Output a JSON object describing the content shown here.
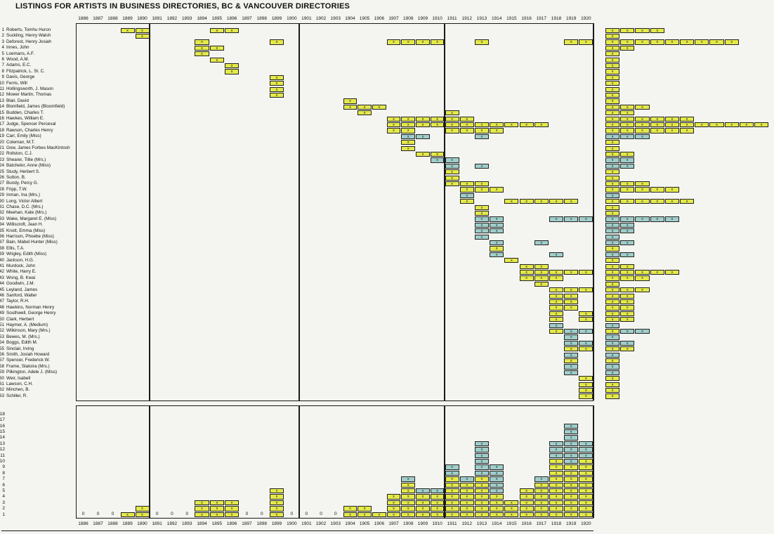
{
  "title": "LISTINGS FOR ARTISTS IN BUSINESS DIRECTORIES, BC & VANCOUVER DIRECTORIES",
  "colors": {
    "mark_yellow": "#e4e94a",
    "mark_cyan": "#9fceca",
    "line": "#1a1a1a",
    "background": "#f4f4f0"
  },
  "chart_data": {
    "type": "heatmap",
    "mark_symbol": "x",
    "years": {
      "start": 1886,
      "end": 1920
    },
    "ylabel_bottom_axis_max": 18,
    "zero_years": [
      1886,
      1887,
      1888,
      1891,
      1892,
      1893,
      1897,
      1898,
      1900,
      1901,
      1902,
      1903
    ],
    "artists": [
      {
        "n": 1,
        "name": "Roberts, Tomhu Huron",
        "marks": [
          [
            1889,
            "y"
          ],
          [
            1890,
            "y"
          ],
          [
            1895,
            "y"
          ],
          [
            1896,
            "y"
          ]
        ]
      },
      {
        "n": 2,
        "name": "Suckling, Henry Walsh",
        "marks": [
          [
            1890,
            "y"
          ]
        ]
      },
      {
        "n": 3,
        "name": "Deforest, Henry Josiah",
        "marks": [
          [
            1894,
            "y"
          ],
          [
            1899,
            "y"
          ],
          [
            1907,
            "y"
          ],
          [
            1908,
            "y"
          ],
          [
            1909,
            "y"
          ],
          [
            1910,
            "y"
          ],
          [
            1913,
            "y"
          ],
          [
            1919,
            "y"
          ],
          [
            1920,
            "y"
          ]
        ]
      },
      {
        "n": 4,
        "name": "Innes, John",
        "marks": [
          [
            1894,
            "y"
          ],
          [
            1895,
            "y"
          ]
        ]
      },
      {
        "n": 5,
        "name": "Loemans, A.F.",
        "marks": [
          [
            1894,
            "y"
          ]
        ]
      },
      {
        "n": 6,
        "name": "Wood, A.M.",
        "marks": [
          [
            1895,
            "y"
          ]
        ]
      },
      {
        "n": 7,
        "name": "Adams, E.C.",
        "marks": [
          [
            1896,
            "y"
          ]
        ]
      },
      {
        "n": 8,
        "name": "Fitzpatrick, L. St. C.",
        "marks": [
          [
            1896,
            "y"
          ]
        ]
      },
      {
        "n": 9,
        "name": "Davis, George",
        "marks": [
          [
            1899,
            "y"
          ]
        ]
      },
      {
        "n": 10,
        "name": "Ferris, Will",
        "marks": [
          [
            1899,
            "y"
          ]
        ]
      },
      {
        "n": 11,
        "name": "Hollingsworth, J. Mason",
        "marks": [
          [
            1899,
            "y"
          ]
        ]
      },
      {
        "n": 12,
        "name": "Mower Martin, Thomas",
        "marks": [
          [
            1899,
            "y"
          ]
        ]
      },
      {
        "n": 13,
        "name": "Blair, David",
        "marks": [
          [
            1904,
            "y"
          ]
        ]
      },
      {
        "n": 14,
        "name": "Blomfield, James (Bloomfield)",
        "marks": [
          [
            1904,
            "y"
          ],
          [
            1905,
            "y"
          ],
          [
            1906,
            "y"
          ]
        ]
      },
      {
        "n": 15,
        "name": "Budden, Charles T.",
        "marks": [
          [
            1905,
            "y"
          ],
          [
            1911,
            "y"
          ]
        ]
      },
      {
        "n": 16,
        "name": "Hawkes, William E.",
        "marks": [
          [
            1907,
            "y"
          ],
          [
            1908,
            "y"
          ],
          [
            1909,
            "y"
          ],
          [
            1910,
            "y"
          ],
          [
            1911,
            "y"
          ],
          [
            1912,
            "y"
          ]
        ]
      },
      {
        "n": 17,
        "name": "Judge, Spencer Perceval",
        "marks": [
          [
            1907,
            "y"
          ],
          [
            1908,
            "y"
          ],
          [
            1909,
            "y"
          ],
          [
            1910,
            "y"
          ],
          [
            1911,
            "y"
          ],
          [
            1912,
            "y"
          ],
          [
            1913,
            "y"
          ],
          [
            1914,
            "y"
          ],
          [
            1915,
            "y"
          ],
          [
            1916,
            "y"
          ],
          [
            1917,
            "y"
          ]
        ]
      },
      {
        "n": 18,
        "name": "Rawson, Charles Henry",
        "marks": [
          [
            1907,
            "y"
          ],
          [
            1908,
            "y"
          ],
          [
            1911,
            "y"
          ],
          [
            1912,
            "y"
          ],
          [
            1913,
            "y"
          ],
          [
            1914,
            "y"
          ]
        ]
      },
      {
        "n": 19,
        "name": "Carr, Emily (Miss)",
        "marks": [
          [
            1908,
            "c"
          ],
          [
            1909,
            "c"
          ],
          [
            1913,
            "c"
          ]
        ]
      },
      {
        "n": 20,
        "name": "Coleman, M.T.",
        "marks": [
          [
            1908,
            "y"
          ]
        ]
      },
      {
        "n": 21,
        "name": "Gow, James Forbes MacKintosh",
        "marks": [
          [
            1908,
            "y"
          ]
        ]
      },
      {
        "n": 22,
        "name": "Rollston, C.J.",
        "marks": [
          [
            1909,
            "y"
          ],
          [
            1910,
            "y"
          ]
        ]
      },
      {
        "n": 23,
        "name": "Shearer, Tillie (Mrs.)",
        "marks": [
          [
            1910,
            "c"
          ],
          [
            1911,
            "c"
          ]
        ]
      },
      {
        "n": 24,
        "name": "Batchelor, Anne (Miss)",
        "marks": [
          [
            1911,
            "c"
          ],
          [
            1913,
            "c"
          ]
        ]
      },
      {
        "n": 25,
        "name": "Study, Herbert S.",
        "marks": [
          [
            1911,
            "y"
          ]
        ]
      },
      {
        "n": 26,
        "name": "Sutton, B.",
        "marks": [
          [
            1911,
            "y"
          ]
        ]
      },
      {
        "n": 27,
        "name": "Bundy, Percy G.",
        "marks": [
          [
            1911,
            "y"
          ],
          [
            1912,
            "y"
          ],
          [
            1913,
            "y"
          ]
        ]
      },
      {
        "n": 28,
        "name": "Fripp, T.W.",
        "marks": [
          [
            1912,
            "y"
          ],
          [
            1913,
            "y"
          ],
          [
            1914,
            "y"
          ]
        ],
        "tally_override": [
          "y",
          "y",
          "y",
          "y",
          "y"
        ]
      },
      {
        "n": 29,
        "name": "Inman, Ina (Mrs.)",
        "marks": [
          [
            1912,
            "c"
          ]
        ]
      },
      {
        "n": 30,
        "name": "Long, Victor Albert",
        "marks": [
          [
            1912,
            "y"
          ],
          [
            1915,
            "y"
          ],
          [
            1916,
            "y"
          ],
          [
            1917,
            "y"
          ],
          [
            1918,
            "y"
          ],
          [
            1919,
            "y"
          ]
        ]
      },
      {
        "n": 31,
        "name": "Chase, D.C. (Mrs.)",
        "marks": [
          [
            1913,
            "y"
          ]
        ]
      },
      {
        "n": 32,
        "name": "Meehan, Kate (Mrs.)",
        "marks": [
          [
            1913,
            "y"
          ]
        ]
      },
      {
        "n": 33,
        "name": "Wake, Margaret E. (Miss)",
        "marks": [
          [
            1913,
            "c"
          ],
          [
            1914,
            "c"
          ],
          [
            1918,
            "c"
          ],
          [
            1919,
            "c"
          ],
          [
            1920,
            "c"
          ]
        ]
      },
      {
        "n": 34,
        "name": "Williscroft, Jean H.",
        "marks": [
          [
            1913,
            "c"
          ],
          [
            1914,
            "c"
          ]
        ]
      },
      {
        "n": 35,
        "name": "Knott, Emma (Miss)",
        "marks": [
          [
            1913,
            "c"
          ],
          [
            1914,
            "c"
          ]
        ]
      },
      {
        "n": 36,
        "name": "Harrison, Phoebe (Miss)",
        "marks": [
          [
            1913,
            "c"
          ]
        ]
      },
      {
        "n": 37,
        "name": "Bain, Mabel Hunter (Miss)",
        "marks": [
          [
            1914,
            "c"
          ],
          [
            1917,
            "c"
          ]
        ]
      },
      {
        "n": 38,
        "name": "Ellis, T.A.",
        "marks": [
          [
            1914,
            "y"
          ]
        ]
      },
      {
        "n": 39,
        "name": "Wrigley, Edith (Miss)",
        "marks": [
          [
            1914,
            "c"
          ],
          [
            1918,
            "c"
          ]
        ]
      },
      {
        "n": 40,
        "name": "Jackson, H.G.",
        "marks": [
          [
            1915,
            "y"
          ]
        ]
      },
      {
        "n": 41,
        "name": "Murdock, John",
        "marks": [
          [
            1916,
            "y"
          ],
          [
            1917,
            "y"
          ]
        ]
      },
      {
        "n": 42,
        "name": "White, Harry E.",
        "marks": [
          [
            1916,
            "y"
          ],
          [
            1917,
            "y"
          ],
          [
            1918,
            "y"
          ],
          [
            1919,
            "y"
          ],
          [
            1920,
            "y"
          ]
        ]
      },
      {
        "n": 43,
        "name": "Wong, B. Kwai",
        "marks": [
          [
            1916,
            "y"
          ],
          [
            1917,
            "y"
          ],
          [
            1918,
            "y"
          ]
        ]
      },
      {
        "n": 44,
        "name": "Goodwin, J.M.",
        "marks": [
          [
            1917,
            "y"
          ]
        ]
      },
      {
        "n": 45,
        "name": "Leyland, James",
        "marks": [
          [
            1918,
            "y"
          ],
          [
            1919,
            "y"
          ],
          [
            1920,
            "y"
          ]
        ]
      },
      {
        "n": 46,
        "name": "Sanford, Walter",
        "marks": [
          [
            1918,
            "y"
          ],
          [
            1919,
            "y"
          ]
        ]
      },
      {
        "n": 47,
        "name": "Taylor, R.H.",
        "marks": [
          [
            1918,
            "y"
          ],
          [
            1919,
            "y"
          ]
        ]
      },
      {
        "n": 48,
        "name": "Hawkins, Norman Henry",
        "marks": [
          [
            1918,
            "y"
          ],
          [
            1919,
            "y"
          ]
        ]
      },
      {
        "n": 49,
        "name": "Southwell, George Henry",
        "marks": [
          [
            1918,
            "y"
          ],
          [
            1920,
            "y"
          ]
        ]
      },
      {
        "n": 50,
        "name": "Clark, Herbert",
        "marks": [
          [
            1918,
            "y"
          ],
          [
            1920,
            "y"
          ]
        ]
      },
      {
        "n": 51,
        "name": "Haymer, A. (Medium)",
        "marks": [
          [
            1918,
            "c"
          ]
        ]
      },
      {
        "n": 52,
        "name": "Wilkinson, Mary (Mrs.)",
        "marks": [
          [
            1918,
            "y"
          ],
          [
            1919,
            "c"
          ],
          [
            1920,
            "c"
          ]
        ]
      },
      {
        "n": 53,
        "name": "Bewes, M. (Mrs.)",
        "marks": [
          [
            1919,
            "c"
          ]
        ]
      },
      {
        "n": 54,
        "name": "Boggs, Edith M.",
        "marks": [
          [
            1919,
            "c"
          ],
          [
            1920,
            "c"
          ]
        ]
      },
      {
        "n": 55,
        "name": "Sinclair, Irving",
        "marks": [
          [
            1919,
            "y"
          ],
          [
            1920,
            "y"
          ]
        ]
      },
      {
        "n": 56,
        "name": "Smith, Josiah Howard",
        "marks": [
          [
            1919,
            "c"
          ]
        ]
      },
      {
        "n": 57,
        "name": "Spencer, Frederick W.",
        "marks": [
          [
            1919,
            "y"
          ]
        ]
      },
      {
        "n": 58,
        "name": "Frame, Statoira (Mrs.)",
        "marks": [
          [
            1919,
            "c"
          ]
        ]
      },
      {
        "n": 59,
        "name": "Pilkington, Adele J. (Miss)",
        "marks": [
          [
            1919,
            "c"
          ]
        ]
      },
      {
        "n": 60,
        "name": "Weir, Isabell",
        "marks": [
          [
            1920,
            "y"
          ]
        ]
      },
      {
        "n": 61,
        "name": "Lawson, C.H.",
        "marks": [
          [
            1920,
            "y"
          ]
        ]
      },
      {
        "n": 62,
        "name": "Minchen, B.",
        "marks": [
          [
            1920,
            "y"
          ]
        ]
      },
      {
        "n": 63,
        "name": "Schiller, R.",
        "marks": [
          [
            1920,
            "y"
          ]
        ]
      }
    ]
  }
}
